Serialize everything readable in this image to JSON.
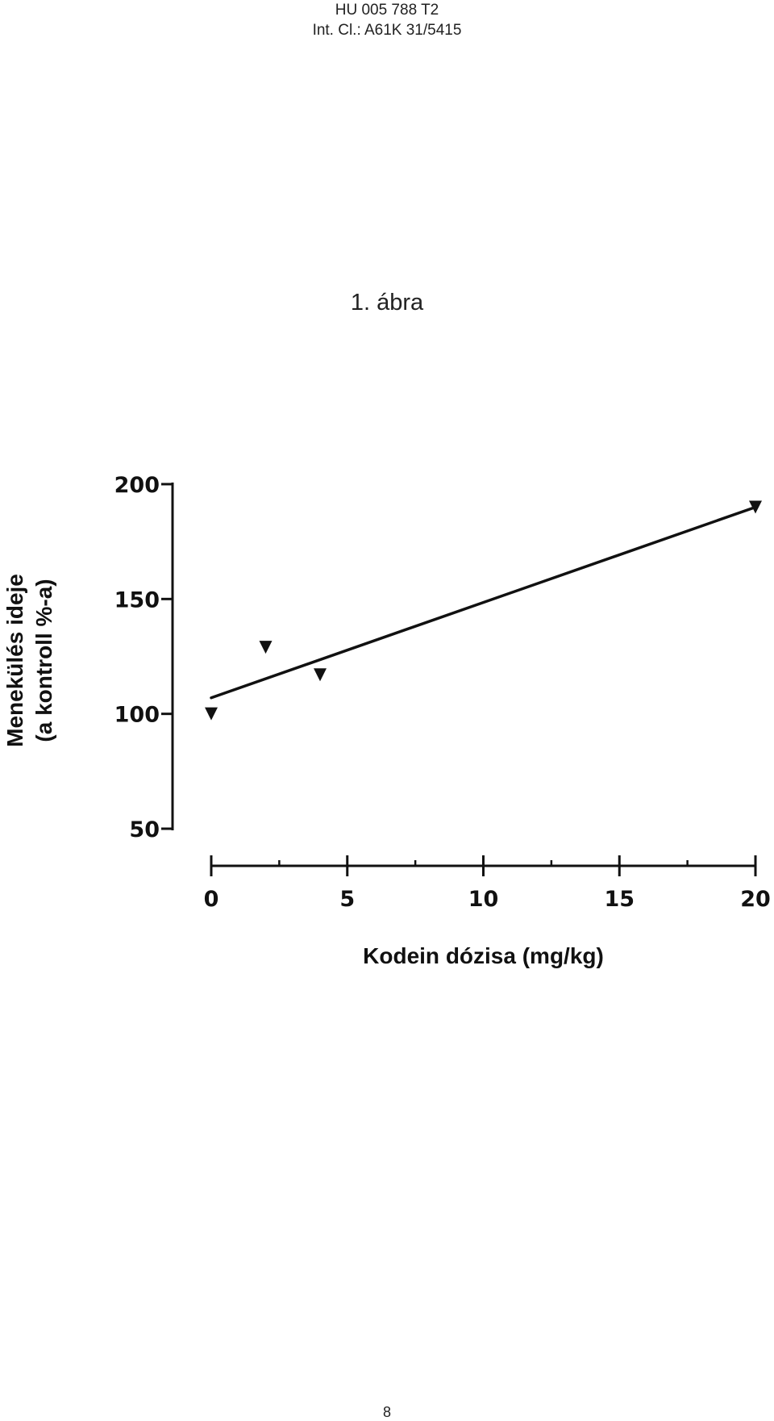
{
  "header": {
    "doc_number": "HU 005 788 T2",
    "classification": "Int. Cl.: A61K 31/5415"
  },
  "figure_title": "1. ábra",
  "page_number": "8",
  "chart_data": {
    "type": "scatter",
    "title": "",
    "xlabel": "Kodein dózisa (mg/kg)",
    "ylabel_lines": [
      "Menekülés ideje",
      "(a kontroll %-a)"
    ],
    "xlim": [
      0,
      20
    ],
    "ylim": [
      50,
      200
    ],
    "x_ticks": [
      0,
      5,
      10,
      15,
      20
    ],
    "y_ticks": [
      50,
      100,
      150,
      200
    ],
    "grid": false,
    "marker": "down-triangle",
    "points": [
      {
        "x": 0,
        "y": 100
      },
      {
        "x": 2,
        "y": 129
      },
      {
        "x": 4,
        "y": 117
      },
      {
        "x": 20,
        "y": 190
      }
    ],
    "fit_line": {
      "x": [
        0,
        20
      ],
      "y": [
        107,
        190
      ]
    }
  }
}
